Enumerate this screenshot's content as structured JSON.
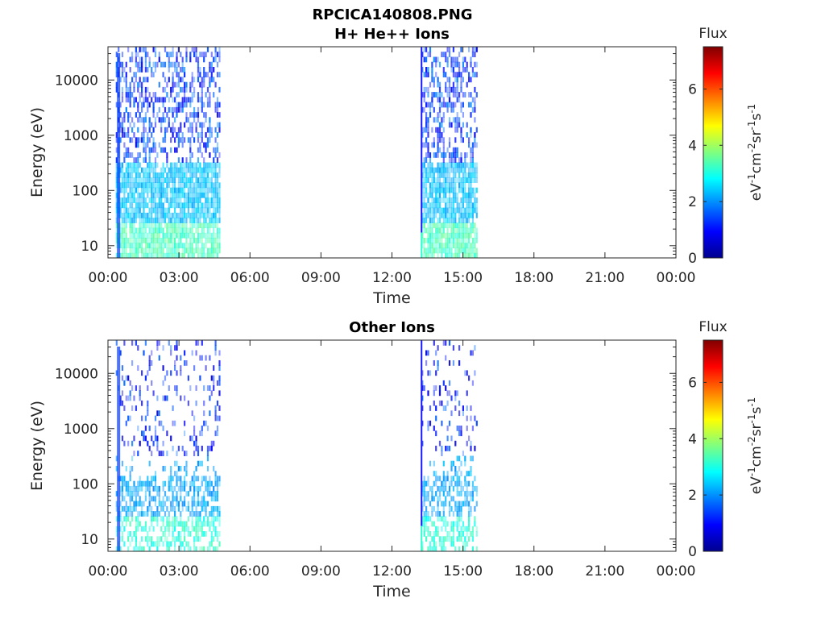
{
  "figure_title": "RPCICA140808.PNG",
  "chart_data": [
    {
      "type": "heatmap",
      "title": "H+ He++ Ions",
      "xlabel": "Time",
      "ylabel": "Energy (eV)",
      "xlim_hours": [
        0,
        24
      ],
      "x_tick_labels": [
        "00:00",
        "03:00",
        "06:00",
        "09:00",
        "12:00",
        "15:00",
        "18:00",
        "21:00",
        "00:00"
      ],
      "y_scale": "log",
      "ylim": [
        6,
        40000
      ],
      "y_ticks": [
        10,
        100,
        1000,
        10000
      ],
      "y_tick_labels": [
        "10",
        "100",
        "1000",
        "10000"
      ],
      "colorbar": {
        "title": "Flux",
        "label": "eV-1cm-2sr-1s-1",
        "range": [
          0,
          7.5
        ],
        "ticks": [
          0,
          2,
          4,
          6
        ],
        "tick_labels": [
          "0",
          "2",
          "4",
          "6"
        ],
        "colormap": "jet"
      },
      "data_intervals_hours": [
        [
          0.33,
          4.75
        ],
        [
          13.25,
          15.55
        ]
      ],
      "spike_hour": 13.25,
      "grid": false
    },
    {
      "type": "heatmap",
      "title": "Other Ions",
      "xlabel": "Time",
      "ylabel": "Energy (eV)",
      "xlim_hours": [
        0,
        24
      ],
      "x_tick_labels": [
        "00:00",
        "03:00",
        "06:00",
        "09:00",
        "12:00",
        "15:00",
        "18:00",
        "21:00",
        "00:00"
      ],
      "y_scale": "log",
      "ylim": [
        6,
        40000
      ],
      "y_ticks": [
        10,
        100,
        1000,
        10000
      ],
      "y_tick_labels": [
        "10",
        "100",
        "1000",
        "10000"
      ],
      "colorbar": {
        "title": "Flux",
        "label": "eV-1cm-2sr-1s-1",
        "range": [
          0,
          7.5
        ],
        "ticks": [
          0,
          2,
          4,
          6
        ],
        "tick_labels": [
          "0",
          "2",
          "4",
          "6"
        ],
        "colormap": "jet"
      },
      "data_intervals_hours": [
        [
          0.33,
          4.75
        ],
        [
          13.25,
          15.55
        ]
      ],
      "spike_hour": 13.25,
      "grid": false
    }
  ]
}
